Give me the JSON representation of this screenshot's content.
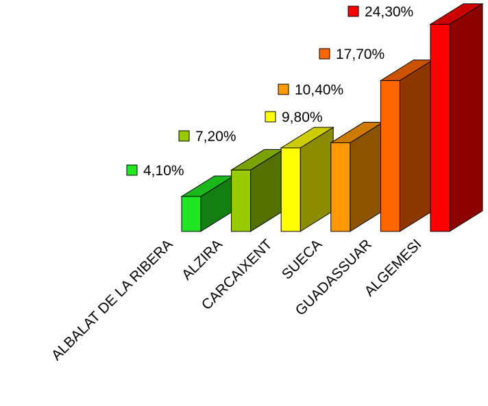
{
  "chart_data": {
    "type": "bar3d",
    "categories": [
      "ALBALAT DE LA RIBERA",
      "ALZIRA",
      "CARCAIXENT",
      "SUECA",
      "GUADASSUAR",
      "ALGEMESI"
    ],
    "values": [
      4.1,
      7.2,
      9.8,
      10.4,
      17.7,
      24.3
    ],
    "value_labels": [
      "4,10%",
      "7,20%",
      "9,80%",
      "10,40%",
      "17,70%",
      "24,30%"
    ],
    "colors": [
      "#22e622",
      "#99cc00",
      "#ffff00",
      "#ff9900",
      "#ff6600",
      "#ff0000"
    ]
  }
}
